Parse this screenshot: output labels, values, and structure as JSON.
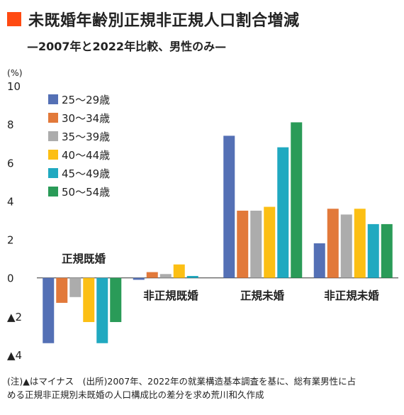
{
  "title": "未既婚年齢別正規非正規人口割合増減",
  "subtitle": "—2007年と2022年比較、男性のみ—",
  "note_line1": "(注)▲はマイナス　(出所)2007年、2022年の就業構造基本調査を基に、総有業男性に占",
  "note_line2": "める正規非正規別未既婚の人口構成比の差分を求め荒川和久作成",
  "colors": {
    "title_mark": "#ff4a12"
  },
  "chart_data": {
    "type": "bar",
    "ylabel": "(%)",
    "ylim": [
      -4,
      10
    ],
    "yticks": [
      {
        "value": 10,
        "label": "10"
      },
      {
        "value": 8,
        "label": "8"
      },
      {
        "value": 6,
        "label": "6"
      },
      {
        "value": 4,
        "label": "4"
      },
      {
        "value": 2,
        "label": "2"
      },
      {
        "value": 0,
        "label": "0"
      },
      {
        "value": -2,
        "label": "▲2"
      },
      {
        "value": -4,
        "label": "▲4"
      }
    ],
    "grid": false,
    "legend": "top-left",
    "categories": [
      "正規既婚",
      "非正規既婚",
      "正規未婚",
      "非正規未婚"
    ],
    "series": [
      {
        "name": "25〜29歳",
        "color": "#5470b5",
        "values": [
          -3.4,
          -0.1,
          7.4,
          1.8
        ]
      },
      {
        "name": "30〜34歳",
        "color": "#e2793a",
        "values": [
          -1.3,
          0.3,
          3.5,
          3.6
        ]
      },
      {
        "name": "35〜39歳",
        "color": "#acacac",
        "values": [
          -1.0,
          0.2,
          3.5,
          3.3
        ]
      },
      {
        "name": "40〜44歳",
        "color": "#fcbf14",
        "values": [
          -2.3,
          0.7,
          3.7,
          3.6
        ]
      },
      {
        "name": "45〜49歳",
        "color": "#20a9c0",
        "values": [
          -3.4,
          0.1,
          6.8,
          2.8
        ]
      },
      {
        "name": "50〜54歳",
        "color": "#2a9b58",
        "values": [
          -2.3,
          0.0,
          8.1,
          2.8
        ]
      }
    ]
  }
}
